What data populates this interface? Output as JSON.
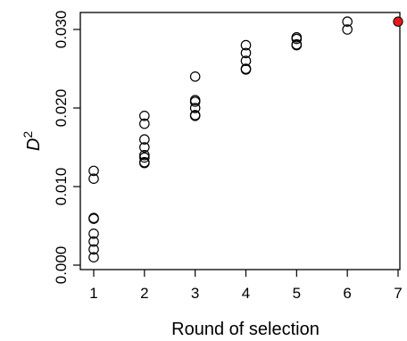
{
  "chart_data": {
    "type": "scatter",
    "xlabel": "Round of selection",
    "ylabel": "D",
    "ylabel_superscript": "2",
    "xlim": [
      1,
      7
    ],
    "ylim": [
      0,
      0.031
    ],
    "x_ticks": [
      1,
      2,
      3,
      4,
      5,
      6,
      7
    ],
    "x_tick_labels": [
      "1",
      "2",
      "3",
      "4",
      "5",
      "6",
      "7"
    ],
    "y_ticks": [
      0.0,
      0.01,
      0.02,
      0.03
    ],
    "y_tick_labels": [
      "0.000",
      "0.010",
      "0.020",
      "0.030"
    ],
    "grid": false,
    "legend": "none",
    "point_color": "#000000",
    "highlight_color": "#e31a1c",
    "series": [
      {
        "points": [
          {
            "x": 1,
            "y": 0.012
          },
          {
            "x": 1,
            "y": 0.011
          },
          {
            "x": 1,
            "y": 0.006
          },
          {
            "x": 1,
            "y": 0.0059
          },
          {
            "x": 1,
            "y": 0.004
          },
          {
            "x": 1,
            "y": 0.003
          },
          {
            "x": 1,
            "y": 0.002
          },
          {
            "x": 1,
            "y": 0.001
          },
          {
            "x": 2,
            "y": 0.019
          },
          {
            "x": 2,
            "y": 0.018
          },
          {
            "x": 2,
            "y": 0.016
          },
          {
            "x": 2,
            "y": 0.015
          },
          {
            "x": 2,
            "y": 0.014
          },
          {
            "x": 2,
            "y": 0.0137
          },
          {
            "x": 2,
            "y": 0.013
          },
          {
            "x": 2,
            "y": 0.0131
          },
          {
            "x": 3,
            "y": 0.024
          },
          {
            "x": 3,
            "y": 0.021
          },
          {
            "x": 3,
            "y": 0.0208
          },
          {
            "x": 3,
            "y": 0.02
          },
          {
            "x": 3,
            "y": 0.019
          },
          {
            "x": 3,
            "y": 0.0191
          },
          {
            "x": 4,
            "y": 0.028
          },
          {
            "x": 4,
            "y": 0.027
          },
          {
            "x": 4,
            "y": 0.026
          },
          {
            "x": 4,
            "y": 0.025
          },
          {
            "x": 4,
            "y": 0.0249
          },
          {
            "x": 5,
            "y": 0.029
          },
          {
            "x": 5,
            "y": 0.0288
          },
          {
            "x": 5,
            "y": 0.028
          },
          {
            "x": 5,
            "y": 0.0281
          },
          {
            "x": 6,
            "y": 0.031
          },
          {
            "x": 6,
            "y": 0.03
          }
        ]
      },
      {
        "highlight": true,
        "points": [
          {
            "x": 7,
            "y": 0.031
          }
        ]
      }
    ]
  }
}
